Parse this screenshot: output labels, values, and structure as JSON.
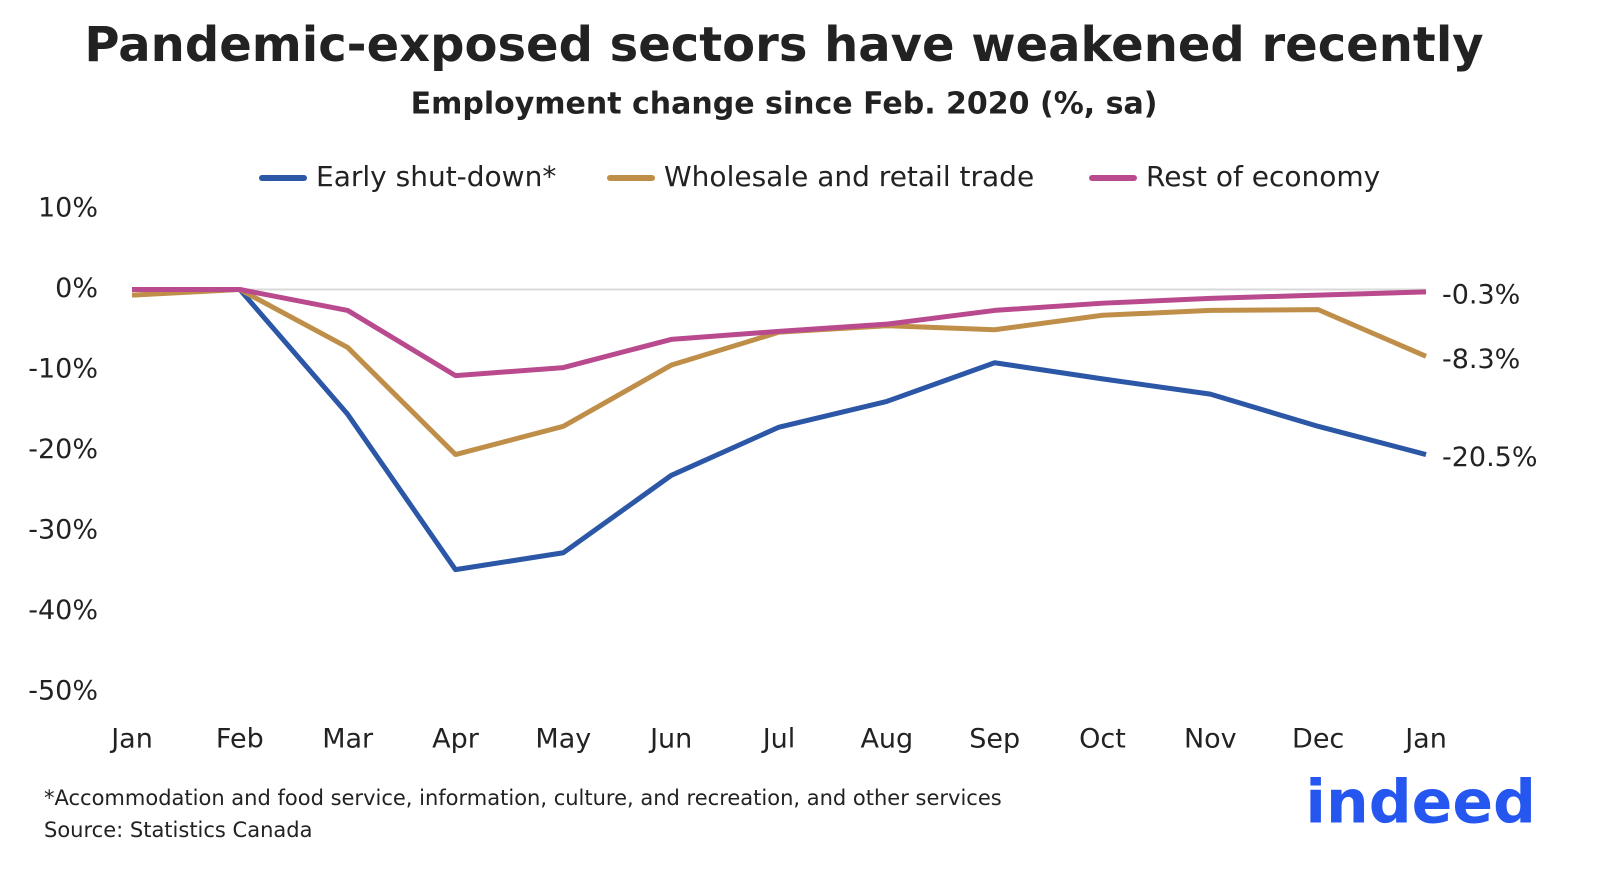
{
  "chart_data": {
    "type": "line",
    "title": "Pandemic-exposed sectors have weakened recently",
    "subtitle": "Employment change since Feb. 2020 (%, sa)",
    "categories": [
      "Jan",
      "Feb",
      "Mar",
      "Apr",
      "May",
      "Jun",
      "Jul",
      "Aug",
      "Sep",
      "Oct",
      "Nov",
      "Dec",
      "Jan"
    ],
    "series": [
      {
        "name": "Early shut-down*",
        "color": "#2b57a6",
        "values": [
          0,
          0,
          -15.5,
          -34.8,
          -32.7,
          -23.1,
          -17.1,
          -13.9,
          -9.1,
          -11.1,
          -13.0,
          -17.0,
          -20.5
        ],
        "value_labels": [
          null,
          null,
          null,
          null,
          null,
          null,
          null,
          null,
          null,
          null,
          null,
          null,
          "-20.5%"
        ]
      },
      {
        "name": "Wholesale and retail trade",
        "color": "#bf8f4a",
        "values": [
          -0.7,
          0,
          -7.2,
          -20.5,
          -17.0,
          -9.4,
          -5.3,
          -4.5,
          -5.0,
          -3.2,
          -2.6,
          -2.5,
          -8.3
        ],
        "value_labels": [
          null,
          null,
          null,
          null,
          null,
          null,
          null,
          null,
          null,
          null,
          null,
          null,
          "-8.3%"
        ]
      },
      {
        "name": "Rest of economy",
        "color": "#b94a8e",
        "values": [
          0,
          0,
          -2.6,
          -10.7,
          -9.7,
          -6.2,
          -5.2,
          -4.3,
          -2.6,
          -1.7,
          -1.1,
          -0.7,
          -0.3
        ],
        "value_labels": [
          null,
          null,
          null,
          null,
          null,
          null,
          null,
          null,
          null,
          null,
          null,
          null,
          "-0.3%"
        ]
      }
    ],
    "ylim": [
      -50,
      10
    ],
    "yticks": [
      {
        "value": 10,
        "label": "10%"
      },
      {
        "value": 0,
        "label": "0%"
      },
      {
        "value": -10,
        "label": "-10%"
      },
      {
        "value": -20,
        "label": "-20%"
      },
      {
        "value": -30,
        "label": "-30%"
      },
      {
        "value": -40,
        "label": "-40%"
      },
      {
        "value": -50,
        "label": "-50%"
      }
    ],
    "zero_line": true,
    "legend": "top",
    "footnote": "*Accommodation and food service, information, culture, and recreation, and other services",
    "source": "Source: Statistics Canada",
    "logo": "indeed"
  }
}
